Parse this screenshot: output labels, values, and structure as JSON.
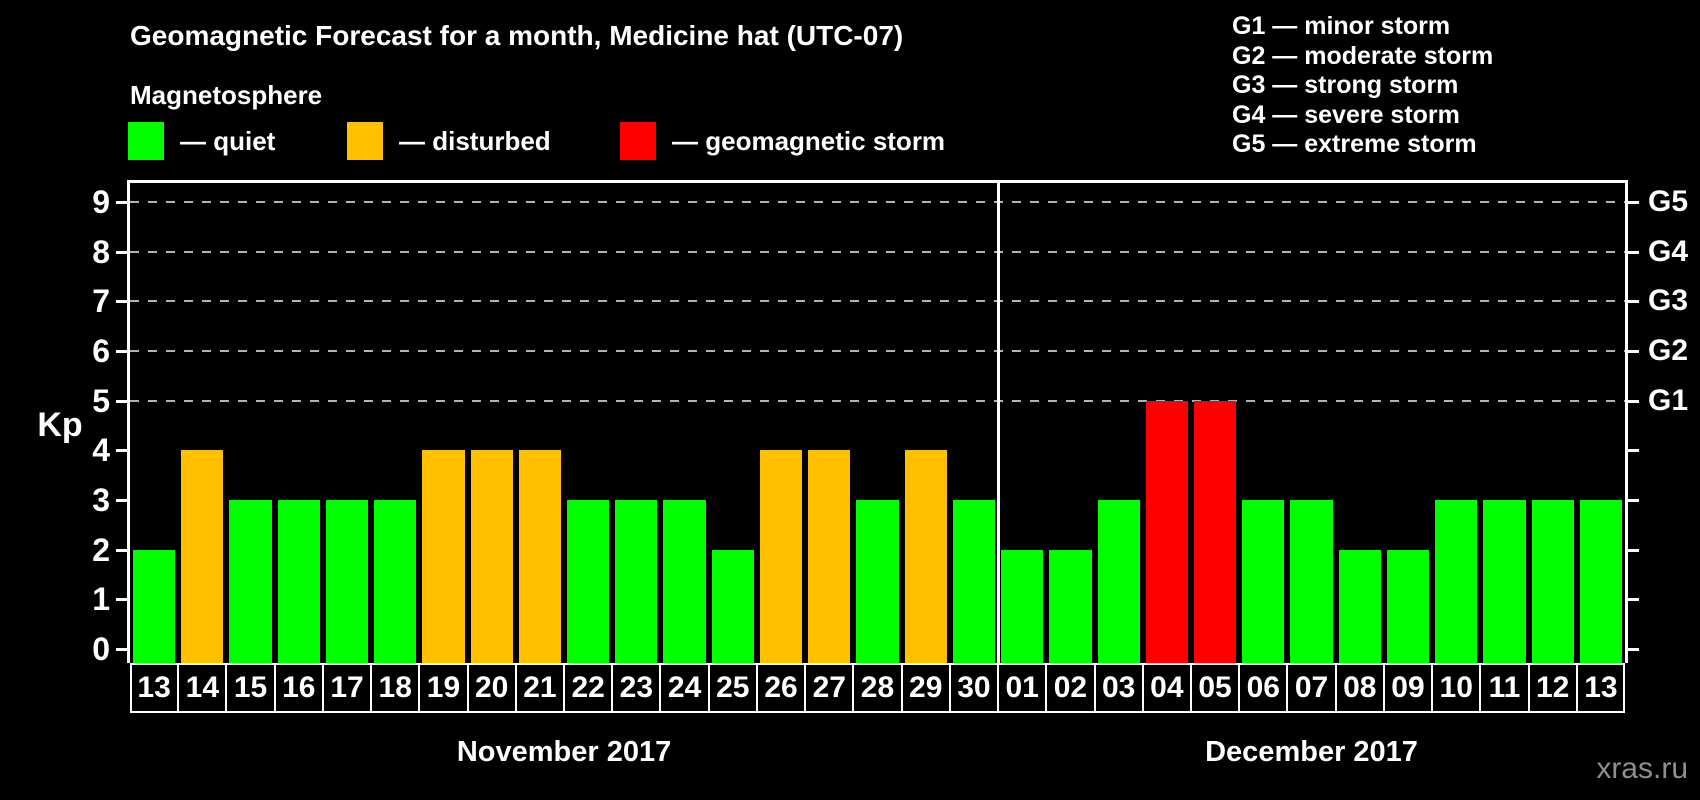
{
  "title": "Geomagnetic Forecast for a month, Medicine hat (UTC-07)",
  "magnetosphere_label": "Magnetosphere",
  "legend": [
    {
      "key": "quiet",
      "label": "— quiet",
      "color": "#00ff00"
    },
    {
      "key": "disturbed",
      "label": "— disturbed",
      "color": "#ffc000"
    },
    {
      "key": "storm",
      "label": "— geomagnetic storm",
      "color": "#ff0000"
    }
  ],
  "g_legend": [
    "G1 — minor storm",
    "G2 — moderate storm",
    "G3 — strong storm",
    "G4 — severe storm",
    "G5 — extreme storm"
  ],
  "watermark": "xras.ru",
  "chart_data": {
    "type": "bar",
    "title": "Geomagnetic Forecast for a month, Medicine hat (UTC-07)",
    "ylabel": "Kp",
    "ylim": [
      0,
      9
    ],
    "y_ticks": [
      0,
      1,
      2,
      3,
      4,
      5,
      6,
      7,
      8,
      9
    ],
    "gridlines_at": [
      5,
      6,
      7,
      8,
      9
    ],
    "grid": "dashed horizontal lines at storm levels only",
    "legend_position": "top",
    "right_axis_labels": [
      {
        "value": 5,
        "label": "G1"
      },
      {
        "value": 6,
        "label": "G2"
      },
      {
        "value": 7,
        "label": "G3"
      },
      {
        "value": 8,
        "label": "G4"
      },
      {
        "value": 9,
        "label": "G5"
      }
    ],
    "status_colors": {
      "quiet": "#00ff00",
      "disturbed": "#ffc000",
      "storm": "#ff0000"
    },
    "months": [
      {
        "label": "November 2017",
        "days": [
          {
            "day": "13",
            "kp": 2,
            "status": "quiet"
          },
          {
            "day": "14",
            "kp": 4,
            "status": "disturbed"
          },
          {
            "day": "15",
            "kp": 3,
            "status": "quiet"
          },
          {
            "day": "16",
            "kp": 3,
            "status": "quiet"
          },
          {
            "day": "17",
            "kp": 3,
            "status": "quiet"
          },
          {
            "day": "18",
            "kp": 3,
            "status": "quiet"
          },
          {
            "day": "19",
            "kp": 4,
            "status": "disturbed"
          },
          {
            "day": "20",
            "kp": 4,
            "status": "disturbed"
          },
          {
            "day": "21",
            "kp": 4,
            "status": "disturbed"
          },
          {
            "day": "22",
            "kp": 3,
            "status": "quiet"
          },
          {
            "day": "23",
            "kp": 3,
            "status": "quiet"
          },
          {
            "day": "24",
            "kp": 3,
            "status": "quiet"
          },
          {
            "day": "25",
            "kp": 2,
            "status": "quiet"
          },
          {
            "day": "26",
            "kp": 4,
            "status": "disturbed"
          },
          {
            "day": "27",
            "kp": 4,
            "status": "disturbed"
          },
          {
            "day": "28",
            "kp": 3,
            "status": "quiet"
          },
          {
            "day": "29",
            "kp": 4,
            "status": "disturbed"
          },
          {
            "day": "30",
            "kp": 3,
            "status": "quiet"
          }
        ]
      },
      {
        "label": "December 2017",
        "days": [
          {
            "day": "01",
            "kp": 2,
            "status": "quiet"
          },
          {
            "day": "02",
            "kp": 2,
            "status": "quiet"
          },
          {
            "day": "03",
            "kp": 3,
            "status": "quiet"
          },
          {
            "day": "04",
            "kp": 5,
            "status": "storm"
          },
          {
            "day": "05",
            "kp": 5,
            "status": "storm"
          },
          {
            "day": "06",
            "kp": 3,
            "status": "quiet"
          },
          {
            "day": "07",
            "kp": 3,
            "status": "quiet"
          },
          {
            "day": "08",
            "kp": 2,
            "status": "quiet"
          },
          {
            "day": "09",
            "kp": 2,
            "status": "quiet"
          },
          {
            "day": "10",
            "kp": 3,
            "status": "quiet"
          },
          {
            "day": "11",
            "kp": 3,
            "status": "quiet"
          },
          {
            "day": "12",
            "kp": 3,
            "status": "quiet"
          },
          {
            "day": "13",
            "kp": 3,
            "status": "quiet"
          }
        ]
      }
    ]
  }
}
